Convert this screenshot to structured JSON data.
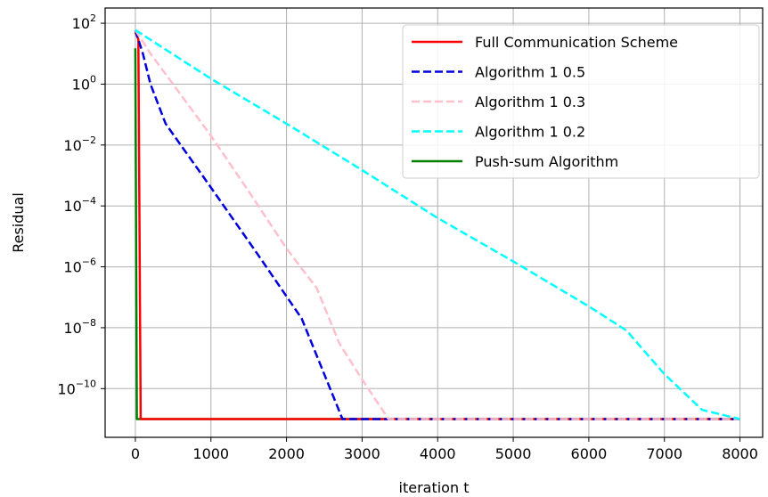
{
  "chart_data": {
    "type": "line",
    "title": "",
    "xlabel": "iteration t",
    "ylabel": "Residual",
    "xlim": [
      -400,
      8300
    ],
    "ylim_log10": [
      -11.6,
      2.5
    ],
    "yscale": "log",
    "grid": true,
    "legend_position": "top-right",
    "x_ticks": [
      0,
      1000,
      2000,
      3000,
      4000,
      5000,
      6000,
      7000,
      8000
    ],
    "x_tick_labels": [
      "0",
      "1000",
      "2000",
      "3000",
      "4000",
      "5000",
      "6000",
      "7000",
      "8000"
    ],
    "y_ticks_log10": [
      2,
      0,
      -2,
      -4,
      -6,
      -8,
      -10
    ],
    "y_tick_labels": [
      "10",
      "10",
      "10",
      "10",
      "10",
      "10",
      "10"
    ],
    "y_tick_exponents": [
      "2",
      "0",
      "−2",
      "−4",
      "−6",
      "−8",
      "−10"
    ],
    "series": [
      {
        "name": "Full Communication Scheme",
        "color": "#ff0000",
        "dash": "solid",
        "points": [
          [
            0,
            50
          ],
          [
            40,
            30
          ],
          [
            70,
            1e-11
          ],
          [
            8000,
            1e-11
          ]
        ]
      },
      {
        "name": "Algorithm 1 0.5",
        "color": "#0000dd",
        "dash": "dashed",
        "points": [
          [
            0,
            60
          ],
          [
            100,
            10
          ],
          [
            200,
            1
          ],
          [
            400,
            0.05
          ],
          [
            1000,
            0.0004
          ],
          [
            1600,
            3e-06
          ],
          [
            2200,
            2e-08
          ],
          [
            2740,
            1e-11
          ],
          [
            8000,
            1e-11
          ]
        ]
      },
      {
        "name": "Algorithm 1 0.3",
        "color": "#ffc0cb",
        "dash": "dashed",
        "points": [
          [
            0,
            60
          ],
          [
            200,
            10
          ],
          [
            500,
            1
          ],
          [
            1000,
            0.02
          ],
          [
            1500,
            0.0003
          ],
          [
            2000,
            4e-06
          ],
          [
            2400,
            2e-07
          ],
          [
            2700,
            3e-09
          ],
          [
            3000,
            2e-10
          ],
          [
            3350,
            1e-11
          ],
          [
            8000,
            1e-11
          ]
        ]
      },
      {
        "name": "Algorithm 1 0.2",
        "color": "#00ffff",
        "dash": "dashed",
        "points": [
          [
            0,
            60
          ],
          [
            1000,
            1.5
          ],
          [
            2000,
            0.05
          ],
          [
            3000,
            0.0015
          ],
          [
            4000,
            4e-05
          ],
          [
            5000,
            1.5e-06
          ],
          [
            6000,
            5e-08
          ],
          [
            6500,
            8e-09
          ],
          [
            7000,
            3e-10
          ],
          [
            7500,
            2e-11
          ],
          [
            8000,
            1e-11
          ]
        ]
      },
      {
        "name": "Push-sum Algorithm",
        "color": "#008000",
        "dash": "solid",
        "points": [
          [
            0,
            15
          ],
          [
            20,
            1e-11
          ],
          [
            8000,
            1e-11
          ]
        ]
      }
    ]
  }
}
